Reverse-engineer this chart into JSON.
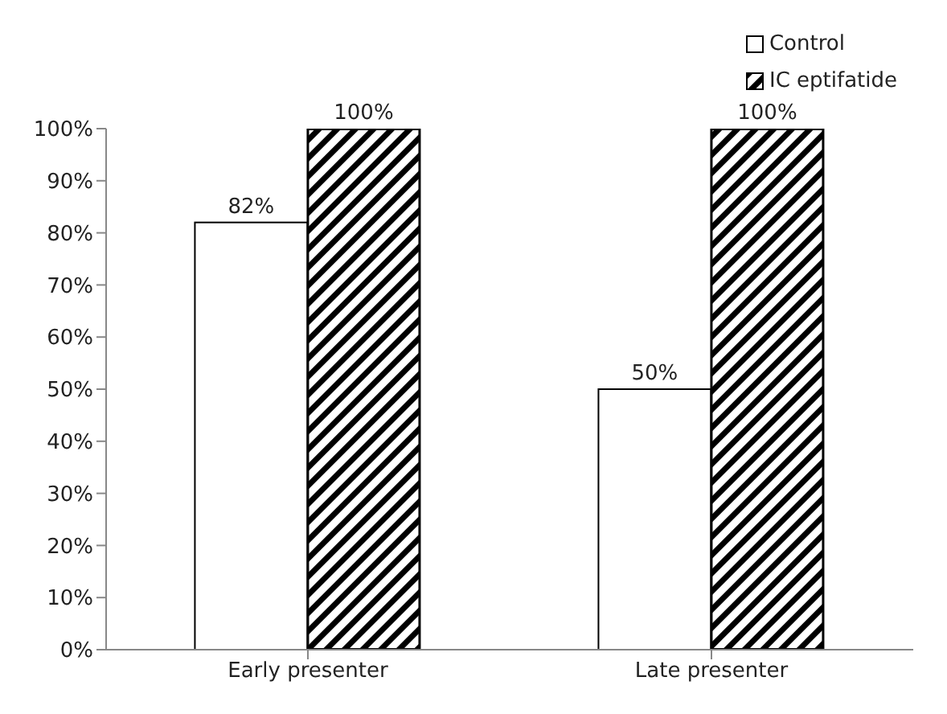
{
  "chart_data": {
    "type": "bar",
    "categories": [
      "Early presenter",
      "Late presenter"
    ],
    "series": [
      {
        "name": "Control",
        "color": "#ffffff",
        "values": [
          82,
          50
        ],
        "value_labels": [
          "82%",
          "50%"
        ]
      },
      {
        "name": "IC eptifatide",
        "color": "#000000",
        "values": [
          100,
          100
        ],
        "value_labels": [
          "100%",
          "100%"
        ]
      }
    ],
    "ylim": [
      0,
      100
    ],
    "yticks": [
      {
        "value": 0,
        "label": "0%"
      },
      {
        "value": 10,
        "label": "10%"
      },
      {
        "value": 20,
        "label": "20%"
      },
      {
        "value": 30,
        "label": "30%"
      },
      {
        "value": 40,
        "label": "40%"
      },
      {
        "value": 50,
        "label": "50%"
      },
      {
        "value": 60,
        "label": "60%"
      },
      {
        "value": 70,
        "label": "70%"
      },
      {
        "value": 80,
        "label": "80%"
      },
      {
        "value": 90,
        "label": "90%"
      },
      {
        "value": 100,
        "label": "100%"
      }
    ],
    "grid": false,
    "legend": "top right"
  }
}
